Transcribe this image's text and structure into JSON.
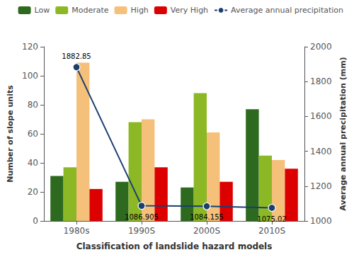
{
  "chart_data": {
    "type": "bar",
    "categories": [
      "1980s",
      "1990S",
      "2000S",
      "2010S"
    ],
    "series": [
      {
        "name": "Low",
        "color": "#2d6a1f",
        "values": [
          31,
          27,
          23,
          77
        ]
      },
      {
        "name": "Moderate",
        "color": "#8db826",
        "values": [
          37,
          68,
          88,
          45
        ]
      },
      {
        "name": "High",
        "color": "#f5c07a",
        "values": [
          109,
          70,
          61,
          42
        ]
      },
      {
        "name": "Very High",
        "color": "#dd0000",
        "values": [
          22,
          37,
          27,
          36
        ]
      },
      {
        "name": "Average annual precipitation",
        "type": "line",
        "axis": "y2",
        "color": "#1a3f6f",
        "marker": "circle",
        "line_style": "solid",
        "data_labels": true,
        "values": [
          1882.85,
          1086.905,
          1084.155,
          1075.02
        ]
      }
    ],
    "xlabel": "Classification of landslide hazard models",
    "ylabel": "Number of slope units",
    "y2label": "Average annual precipitation (mm)",
    "ylim": [
      0,
      120
    ],
    "yticks": [
      0,
      20,
      40,
      60,
      80,
      100,
      120
    ],
    "y2lim": [
      1000,
      2000
    ],
    "y2ticks": [
      1000,
      1200,
      1400,
      1600,
      1800,
      2000
    ],
    "grid": false,
    "legend": "upper right"
  }
}
